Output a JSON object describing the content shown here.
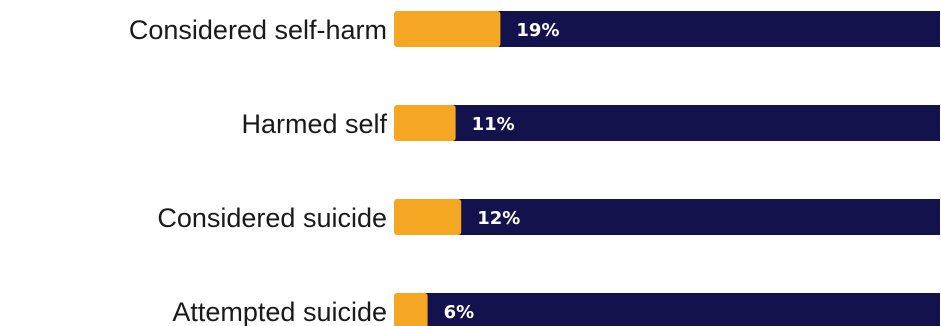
{
  "chart_data": {
    "type": "bar",
    "orientation": "horizontal",
    "categories": [
      "Considered self-harm",
      "Harmed self",
      "Considered suicide",
      "Attempted suicide"
    ],
    "values": [
      19,
      11,
      12,
      6
    ],
    "value_labels": [
      "19%",
      "11%",
      "12%",
      "6%"
    ],
    "xlim": [
      0,
      100
    ],
    "grid": false,
    "legend": "none",
    "colors": {
      "value_fill": "#f5a623",
      "track_fill": "#14124d"
    }
  }
}
